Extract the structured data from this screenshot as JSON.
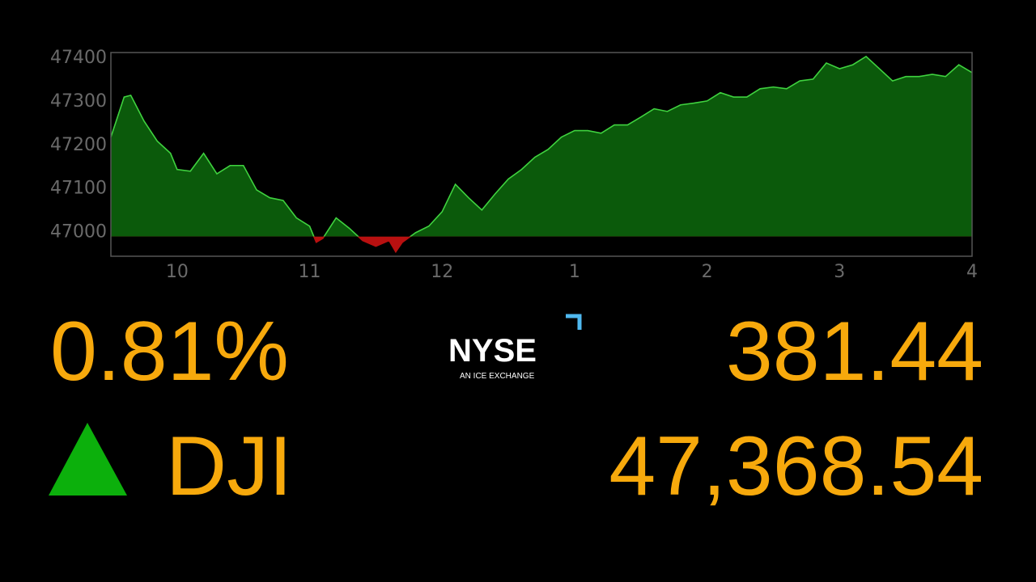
{
  "chart_data": {
    "type": "area",
    "x": [
      9.5,
      9.6,
      9.65,
      9.75,
      9.85,
      9.95,
      10.0,
      10.1,
      10.2,
      10.3,
      10.4,
      10.5,
      10.6,
      10.7,
      10.8,
      10.9,
      11.0,
      11.05,
      11.1,
      11.2,
      11.3,
      11.4,
      11.5,
      11.6,
      11.65,
      11.7,
      11.8,
      11.9,
      12.0,
      12.1,
      12.2,
      12.3,
      12.4,
      12.5,
      12.6,
      12.7,
      12.8,
      12.9,
      13.0,
      13.1,
      13.2,
      13.3,
      13.4,
      13.5,
      13.6,
      13.7,
      13.8,
      13.9,
      14.0,
      14.1,
      14.2,
      14.3,
      14.4,
      14.5,
      14.6,
      14.7,
      14.8,
      14.9,
      15.0,
      15.1,
      15.2,
      15.3,
      15.4,
      15.5,
      15.6,
      15.7,
      15.8,
      15.9,
      16.0
    ],
    "values": [
      47215,
      47307,
      47311,
      47252,
      47206,
      47178,
      47141,
      47137,
      47178,
      47131,
      47150,
      47150,
      47094,
      47076,
      47070,
      47030,
      47011,
      46974,
      46983,
      47030,
      47006,
      46978,
      46965,
      46978,
      46952,
      46974,
      46996,
      47011,
      47044,
      47107,
      47076,
      47048,
      47085,
      47119,
      47141,
      47169,
      47187,
      47215,
      47230,
      47230,
      47224,
      47243,
      47243,
      47261,
      47280,
      47274,
      47289,
      47293,
      47298,
      47317,
      47307,
      47307,
      47326,
      47330,
      47326,
      47344,
      47348,
      47385,
      47372,
      47381,
      47400,
      47372,
      47344,
      47354,
      47354,
      47359,
      47354,
      47381,
      47363
    ],
    "reference_value": 46987.1,
    "xlim": [
      9.5,
      16
    ],
    "xticks": [
      10,
      11,
      12,
      {
        "value": 13,
        "label": "1"
      },
      {
        "value": 14,
        "label": "2"
      },
      {
        "value": 15,
        "label": "3"
      },
      {
        "value": 16,
        "label": "4"
      }
    ],
    "ylim": [
      46942,
      47409
    ],
    "yticks": [
      47000,
      47100,
      47200,
      47300,
      47400
    ],
    "line_color": "#3fd23f",
    "fill_color": "#0b5a0b",
    "below_color": "#b81010"
  },
  "quote": {
    "percent_change": "0.81%",
    "symbol": "DJI",
    "point_change": "381.44",
    "price": "47,368.54",
    "direction": "up"
  },
  "logo": {
    "name": "NYSE",
    "tagline": "AN ICE EXCHANGE"
  }
}
